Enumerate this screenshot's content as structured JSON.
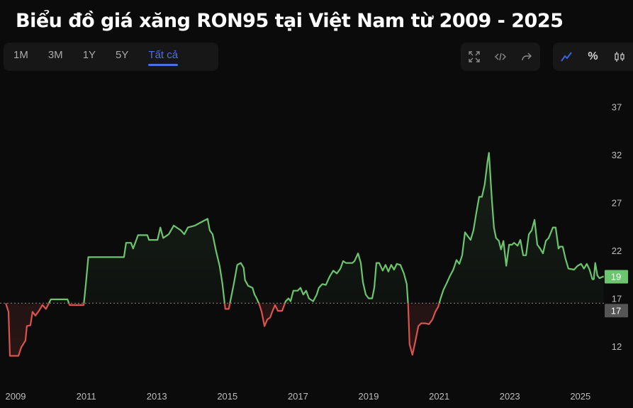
{
  "title": "Biểu đồ giá xăng RON95 tại Việt Nam từ 2009 - 2025",
  "range_buttons": [
    {
      "label": "1M",
      "active": false
    },
    {
      "label": "3M",
      "active": false
    },
    {
      "label": "1Y",
      "active": false
    },
    {
      "label": "5Y",
      "active": false
    },
    {
      "label": "Tất cả",
      "active": true
    }
  ],
  "tool_icons": [
    "fullscreen-icon",
    "embed-code-icon",
    "share-icon"
  ],
  "mode_icons": [
    "line-chart-icon",
    "percent-icon",
    "candlestick-icon"
  ],
  "mode_symbols": {
    "percent": "%"
  },
  "colors": {
    "up": "#6cc46f",
    "down": "#d9534f",
    "accent": "#4f6fe0",
    "last_label_bg": "#6cc46f",
    "baseline_label_bg": "#555555"
  },
  "chart_data": {
    "type": "line",
    "title": "Biểu đồ giá xăng RON95 tại Việt Nam từ 2009 - 2025",
    "xlim": [
      2008.72,
      2025.66
    ],
    "ylim": [
      9,
      40
    ],
    "x_ticks": [
      "2009",
      "2011",
      "2013",
      "2015",
      "2017",
      "2019",
      "2021",
      "2023",
      "2025"
    ],
    "y_ticks": [
      "12",
      "17",
      "22",
      "27",
      "32",
      "37"
    ],
    "grid": false,
    "baseline": 16.5,
    "baseline_label": "17",
    "last_value_label": "19",
    "points": [
      [
        2008.72,
        16.5
      ],
      [
        2008.8,
        15.6
      ],
      [
        2008.84,
        11.0
      ],
      [
        2009.08,
        11.0
      ],
      [
        2009.16,
        11.9
      ],
      [
        2009.28,
        12.6
      ],
      [
        2009.32,
        14.1
      ],
      [
        2009.42,
        14.2
      ],
      [
        2009.48,
        15.6
      ],
      [
        2009.56,
        15.2
      ],
      [
        2009.66,
        15.7
      ],
      [
        2009.76,
        16.3
      ],
      [
        2009.86,
        15.9
      ],
      [
        2010.0,
        16.9
      ],
      [
        2010.47,
        16.9
      ],
      [
        2010.53,
        16.3
      ],
      [
        2010.93,
        16.3
      ],
      [
        2010.99,
        18.5
      ],
      [
        2011.06,
        21.3
      ],
      [
        2012.07,
        21.3
      ],
      [
        2012.13,
        22.8
      ],
      [
        2012.27,
        22.8
      ],
      [
        2012.33,
        22.2
      ],
      [
        2012.47,
        23.6
      ],
      [
        2012.73,
        23.6
      ],
      [
        2012.78,
        23.1
      ],
      [
        2013.02,
        23.1
      ],
      [
        2013.1,
        24.4
      ],
      [
        2013.18,
        23.3
      ],
      [
        2013.34,
        23.7
      ],
      [
        2013.48,
        24.6
      ],
      [
        2013.68,
        24.1
      ],
      [
        2013.78,
        23.7
      ],
      [
        2013.88,
        24.4
      ],
      [
        2014.08,
        24.6
      ],
      [
        2014.28,
        25.0
      ],
      [
        2014.44,
        25.3
      ],
      [
        2014.5,
        24.1
      ],
      [
        2014.58,
        23.7
      ],
      [
        2014.68,
        21.9
      ],
      [
        2014.78,
        20.4
      ],
      [
        2014.86,
        18.5
      ],
      [
        2014.94,
        15.9
      ],
      [
        2015.04,
        15.9
      ],
      [
        2015.18,
        18.5
      ],
      [
        2015.28,
        20.5
      ],
      [
        2015.38,
        20.7
      ],
      [
        2015.46,
        20.2
      ],
      [
        2015.5,
        18.9
      ],
      [
        2015.59,
        18.3
      ],
      [
        2015.71,
        18.1
      ],
      [
        2015.77,
        17.4
      ],
      [
        2015.83,
        17.0
      ],
      [
        2015.91,
        16.3
      ],
      [
        2015.97,
        15.6
      ],
      [
        2016.05,
        14.1
      ],
      [
        2016.13,
        14.8
      ],
      [
        2016.21,
        15.0
      ],
      [
        2016.27,
        15.6
      ],
      [
        2016.35,
        16.3
      ],
      [
        2016.43,
        15.7
      ],
      [
        2016.55,
        15.7
      ],
      [
        2016.65,
        16.7
      ],
      [
        2016.73,
        17.0
      ],
      [
        2016.79,
        16.7
      ],
      [
        2016.87,
        17.8
      ],
      [
        2016.99,
        17.8
      ],
      [
        2017.07,
        18.1
      ],
      [
        2017.15,
        17.4
      ],
      [
        2017.23,
        17.8
      ],
      [
        2017.31,
        17.0
      ],
      [
        2017.43,
        16.7
      ],
      [
        2017.53,
        17.4
      ],
      [
        2017.59,
        18.1
      ],
      [
        2017.69,
        18.5
      ],
      [
        2017.79,
        18.4
      ],
      [
        2017.9,
        19.3
      ],
      [
        2018.0,
        19.9
      ],
      [
        2018.1,
        19.6
      ],
      [
        2018.2,
        20.1
      ],
      [
        2018.28,
        20.9
      ],
      [
        2018.36,
        20.7
      ],
      [
        2018.54,
        20.7
      ],
      [
        2018.6,
        20.9
      ],
      [
        2018.7,
        21.7
      ],
      [
        2018.78,
        20.7
      ],
      [
        2018.84,
        18.7
      ],
      [
        2018.92,
        17.4
      ],
      [
        2019.0,
        17.0
      ],
      [
        2019.1,
        17.0
      ],
      [
        2019.16,
        18.1
      ],
      [
        2019.22,
        20.7
      ],
      [
        2019.3,
        20.7
      ],
      [
        2019.4,
        19.9
      ],
      [
        2019.48,
        20.5
      ],
      [
        2019.56,
        19.8
      ],
      [
        2019.64,
        20.5
      ],
      [
        2019.72,
        20.0
      ],
      [
        2019.8,
        20.6
      ],
      [
        2019.9,
        20.5
      ],
      [
        2020.0,
        19.6
      ],
      [
        2020.08,
        18.5
      ],
      [
        2020.12,
        16.3
      ],
      [
        2020.16,
        12.2
      ],
      [
        2020.24,
        11.1
      ],
      [
        2020.33,
        12.6
      ],
      [
        2020.41,
        14.1
      ],
      [
        2020.49,
        14.4
      ],
      [
        2020.61,
        14.4
      ],
      [
        2020.71,
        14.3
      ],
      [
        2020.81,
        14.8
      ],
      [
        2020.89,
        15.6
      ],
      [
        2020.97,
        16.1
      ],
      [
        2021.04,
        17.0
      ],
      [
        2021.12,
        17.9
      ],
      [
        2021.2,
        18.5
      ],
      [
        2021.3,
        19.3
      ],
      [
        2021.4,
        20.0
      ],
      [
        2021.49,
        21.0
      ],
      [
        2021.57,
        20.6
      ],
      [
        2021.65,
        21.5
      ],
      [
        2021.73,
        23.9
      ],
      [
        2021.81,
        23.5
      ],
      [
        2021.89,
        23.1
      ],
      [
        2021.97,
        24.1
      ],
      [
        2022.05,
        25.9
      ],
      [
        2022.13,
        27.6
      ],
      [
        2022.21,
        27.6
      ],
      [
        2022.29,
        28.9
      ],
      [
        2022.37,
        31.3
      ],
      [
        2022.41,
        32.2
      ],
      [
        2022.49,
        27.4
      ],
      [
        2022.55,
        24.4
      ],
      [
        2022.61,
        23.3
      ],
      [
        2022.69,
        23.0
      ],
      [
        2022.75,
        22.1
      ],
      [
        2022.82,
        23.0
      ],
      [
        2022.9,
        20.4
      ],
      [
        2022.98,
        22.6
      ],
      [
        2023.06,
        22.6
      ],
      [
        2023.12,
        22.8
      ],
      [
        2023.22,
        22.5
      ],
      [
        2023.3,
        23.1
      ],
      [
        2023.38,
        21.5
      ],
      [
        2023.46,
        21.5
      ],
      [
        2023.54,
        23.7
      ],
      [
        2023.62,
        24.1
      ],
      [
        2023.7,
        25.2
      ],
      [
        2023.78,
        22.6
      ],
      [
        2023.86,
        22.2
      ],
      [
        2023.94,
        21.7
      ],
      [
        2024.02,
        23.0
      ],
      [
        2024.1,
        23.3
      ],
      [
        2024.22,
        24.4
      ],
      [
        2024.3,
        24.4
      ],
      [
        2024.38,
        22.2
      ],
      [
        2024.42,
        22.4
      ],
      [
        2024.5,
        22.4
      ],
      [
        2024.58,
        21.1
      ],
      [
        2024.66,
        20.1
      ],
      [
        2024.82,
        20.0
      ],
      [
        2024.92,
        20.4
      ],
      [
        2025.02,
        20.6
      ],
      [
        2025.1,
        20.1
      ],
      [
        2025.18,
        20.6
      ],
      [
        2025.26,
        20.0
      ],
      [
        2025.34,
        19.0
      ],
      [
        2025.38,
        19.0
      ],
      [
        2025.42,
        20.7
      ],
      [
        2025.48,
        19.4
      ],
      [
        2025.54,
        19.1
      ],
      [
        2025.66,
        19.3
      ]
    ]
  }
}
